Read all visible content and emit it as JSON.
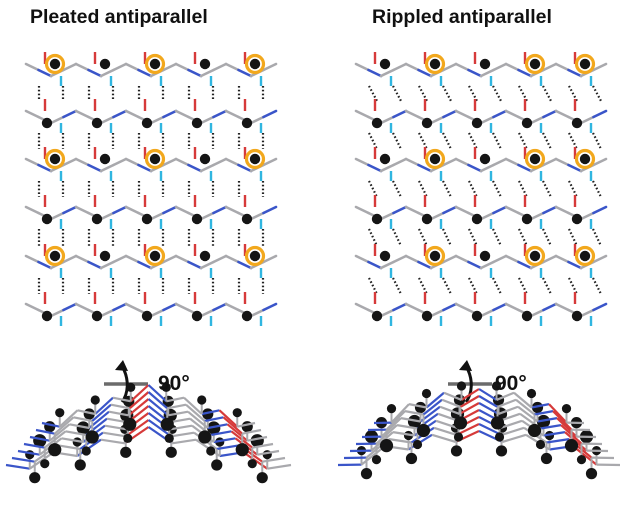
{
  "titles": {
    "left": "Pleated antiparallel",
    "right": "Rippled antiparallel"
  },
  "rotation": {
    "left_label": "90°",
    "right_label": "90°"
  },
  "colors": {
    "carbon": "#a9a9ad",
    "nitrogen": "#3a55c9",
    "oxygen": "#d63a3a",
    "hydrogen": "#30b6e0",
    "methyl_atom": "#151515",
    "highlight_ring": "#f2a81d",
    "hbond": "#222222"
  },
  "panels": [
    {
      "id": "pleated",
      "strand_count": 6,
      "highlighted_columns": [
        0,
        2,
        4
      ],
      "tilt": 0
    },
    {
      "id": "rippled",
      "strand_count": 6,
      "highlighted_columns": [
        1,
        3,
        4
      ],
      "tilt": 1
    }
  ]
}
